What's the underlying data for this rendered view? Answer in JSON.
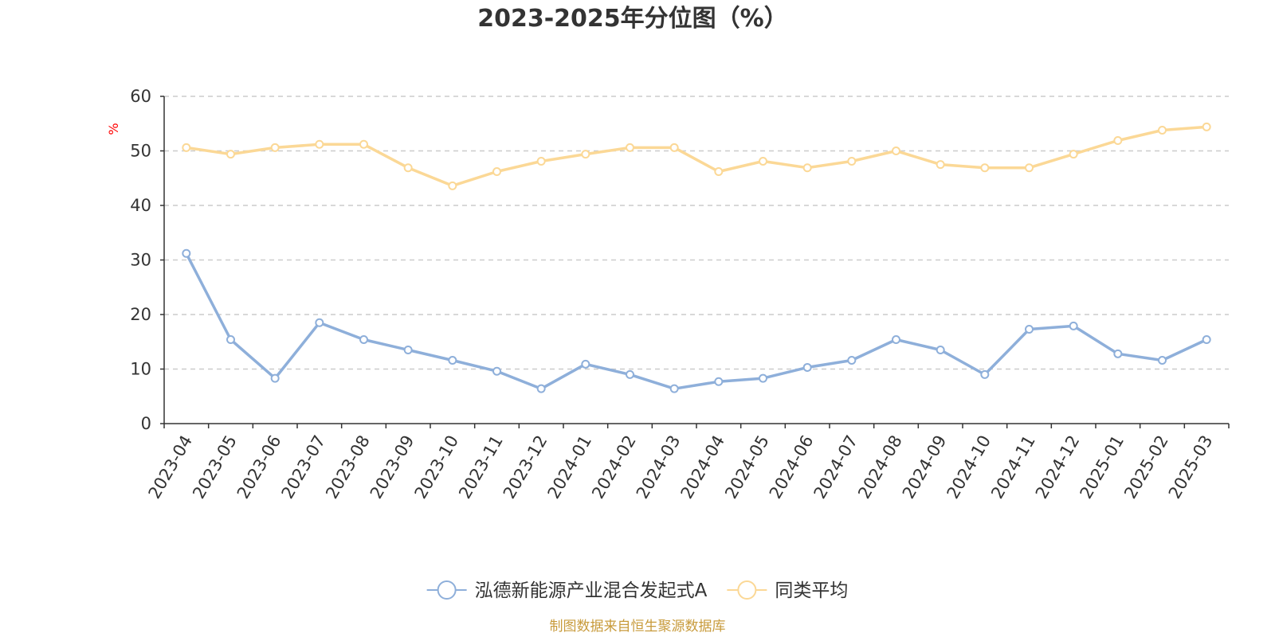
{
  "chart_data": {
    "type": "line",
    "title": "2023-2025年分位图（%）",
    "ylabel": "%",
    "xlabel": "",
    "ylim": [
      0,
      60
    ],
    "yticks": [
      0,
      10,
      20,
      30,
      40,
      50,
      60
    ],
    "grid": true,
    "legend_position": "bottom-center",
    "categories": [
      "2023-04",
      "2023-05",
      "2023-06",
      "2023-07",
      "2023-08",
      "2023-09",
      "2023-10",
      "2023-11",
      "2023-12",
      "2024-01",
      "2024-02",
      "2024-03",
      "2024-04",
      "2024-05",
      "2024-06",
      "2024-07",
      "2024-08",
      "2024-09",
      "2024-10",
      "2024-11",
      "2024-12",
      "2025-01",
      "2025-02",
      "2025-03"
    ],
    "series": [
      {
        "name": "泓德新能源产业混合发起式A",
        "color": "#8eafda",
        "values": [
          31.2,
          15.4,
          8.3,
          18.5,
          15.4,
          13.5,
          11.6,
          9.6,
          6.4,
          10.9,
          9.0,
          6.4,
          7.7,
          8.3,
          10.3,
          11.6,
          15.4,
          13.5,
          9.0,
          17.3,
          17.9,
          12.8,
          11.6,
          15.4
        ]
      },
      {
        "name": "同类平均",
        "color": "#fbd896",
        "values": [
          50.6,
          49.4,
          50.6,
          51.2,
          51.2,
          46.9,
          43.6,
          46.2,
          48.1,
          49.4,
          50.6,
          50.6,
          46.2,
          48.1,
          46.9,
          48.1,
          50.0,
          47.5,
          46.9,
          46.9,
          49.4,
          51.9,
          53.8,
          54.4
        ]
      }
    ]
  },
  "colors": {
    "unit_label": "#ff0000",
    "source": "#c89b3c",
    "axis": "#333333",
    "grid": "#cccccc"
  },
  "footer": {
    "source": "制图数据来自恒生聚源数据库"
  }
}
